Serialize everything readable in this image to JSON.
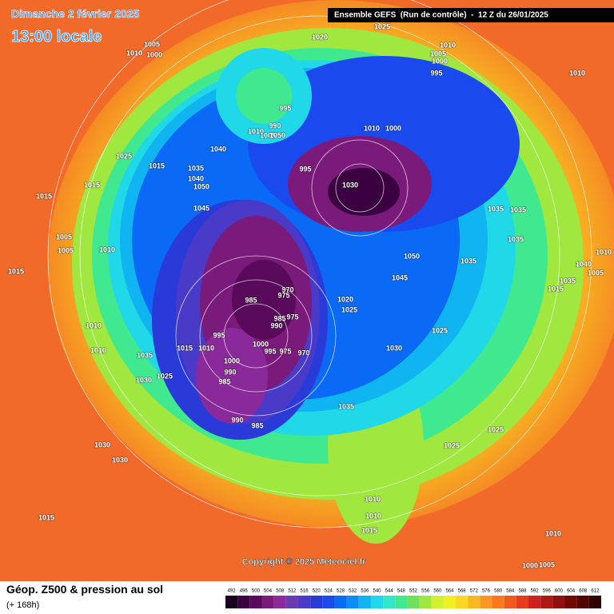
{
  "header": {
    "date": "Dimanche 2 février 2025",
    "time": "13:00 locale",
    "model": "Ensemble GEFS  (Run de contrôle)  -  12 Z du 26/01/2025"
  },
  "copyright": "Copyright © 2025 Meteociel.fr",
  "footer": {
    "title": "Géop. Z500 & pression au sol",
    "lead": "(+ 168h)"
  },
  "legend": {
    "values": [
      492,
      496,
      500,
      504,
      508,
      512,
      516,
      520,
      524,
      528,
      532,
      536,
      540,
      544,
      548,
      552,
      556,
      560,
      564,
      568,
      572,
      576,
      580,
      584,
      588,
      592,
      596,
      600,
      604,
      608,
      612
    ],
    "colors": [
      "#1a0020",
      "#3a0040",
      "#5a0a5a",
      "#7a1a7a",
      "#8a2a9a",
      "#6a3ab0",
      "#4a3ac8",
      "#2a3ad8",
      "#1a4aee",
      "#0a6af6",
      "#0a8ef6",
      "#10b4f0",
      "#20d8e8",
      "#30e8c8",
      "#40e890",
      "#70e060",
      "#a0e840",
      "#d0f030",
      "#f0f020",
      "#f8d820",
      "#f8b820",
      "#f89820",
      "#f87820",
      "#f05a20",
      "#e83a20",
      "#d02020",
      "#b01818",
      "#901010",
      "#700808",
      "#500404",
      "#300000"
    ]
  },
  "pressure_labels": [
    1005,
    1010,
    1000,
    1020,
    1025,
    1010,
    1005,
    1000,
    995,
    1010,
    995,
    990,
    1010,
    1005,
    1050,
    1040,
    1025,
    1015,
    1035,
    1040,
    1050,
    995,
    1030,
    1010,
    1000,
    1015,
    1015,
    1045,
    1035,
    1035,
    1005,
    1005,
    1010,
    1035,
    1050,
    1045,
    1035,
    1015,
    1040,
    1005,
    1010,
    1035,
    1015,
    985,
    975,
    970,
    1020,
    1025,
    985,
    975,
    990,
    995,
    1000,
    995,
    975,
    970,
    1015,
    1010,
    1010,
    1010,
    1035,
    1000,
    990,
    985,
    1025,
    1030,
    1030,
    1025,
    990,
    985,
    1035,
    1025,
    1025,
    1030,
    1030,
    1015,
    1010,
    1010,
    1015,
    1010,
    1005,
    1000
  ]
}
